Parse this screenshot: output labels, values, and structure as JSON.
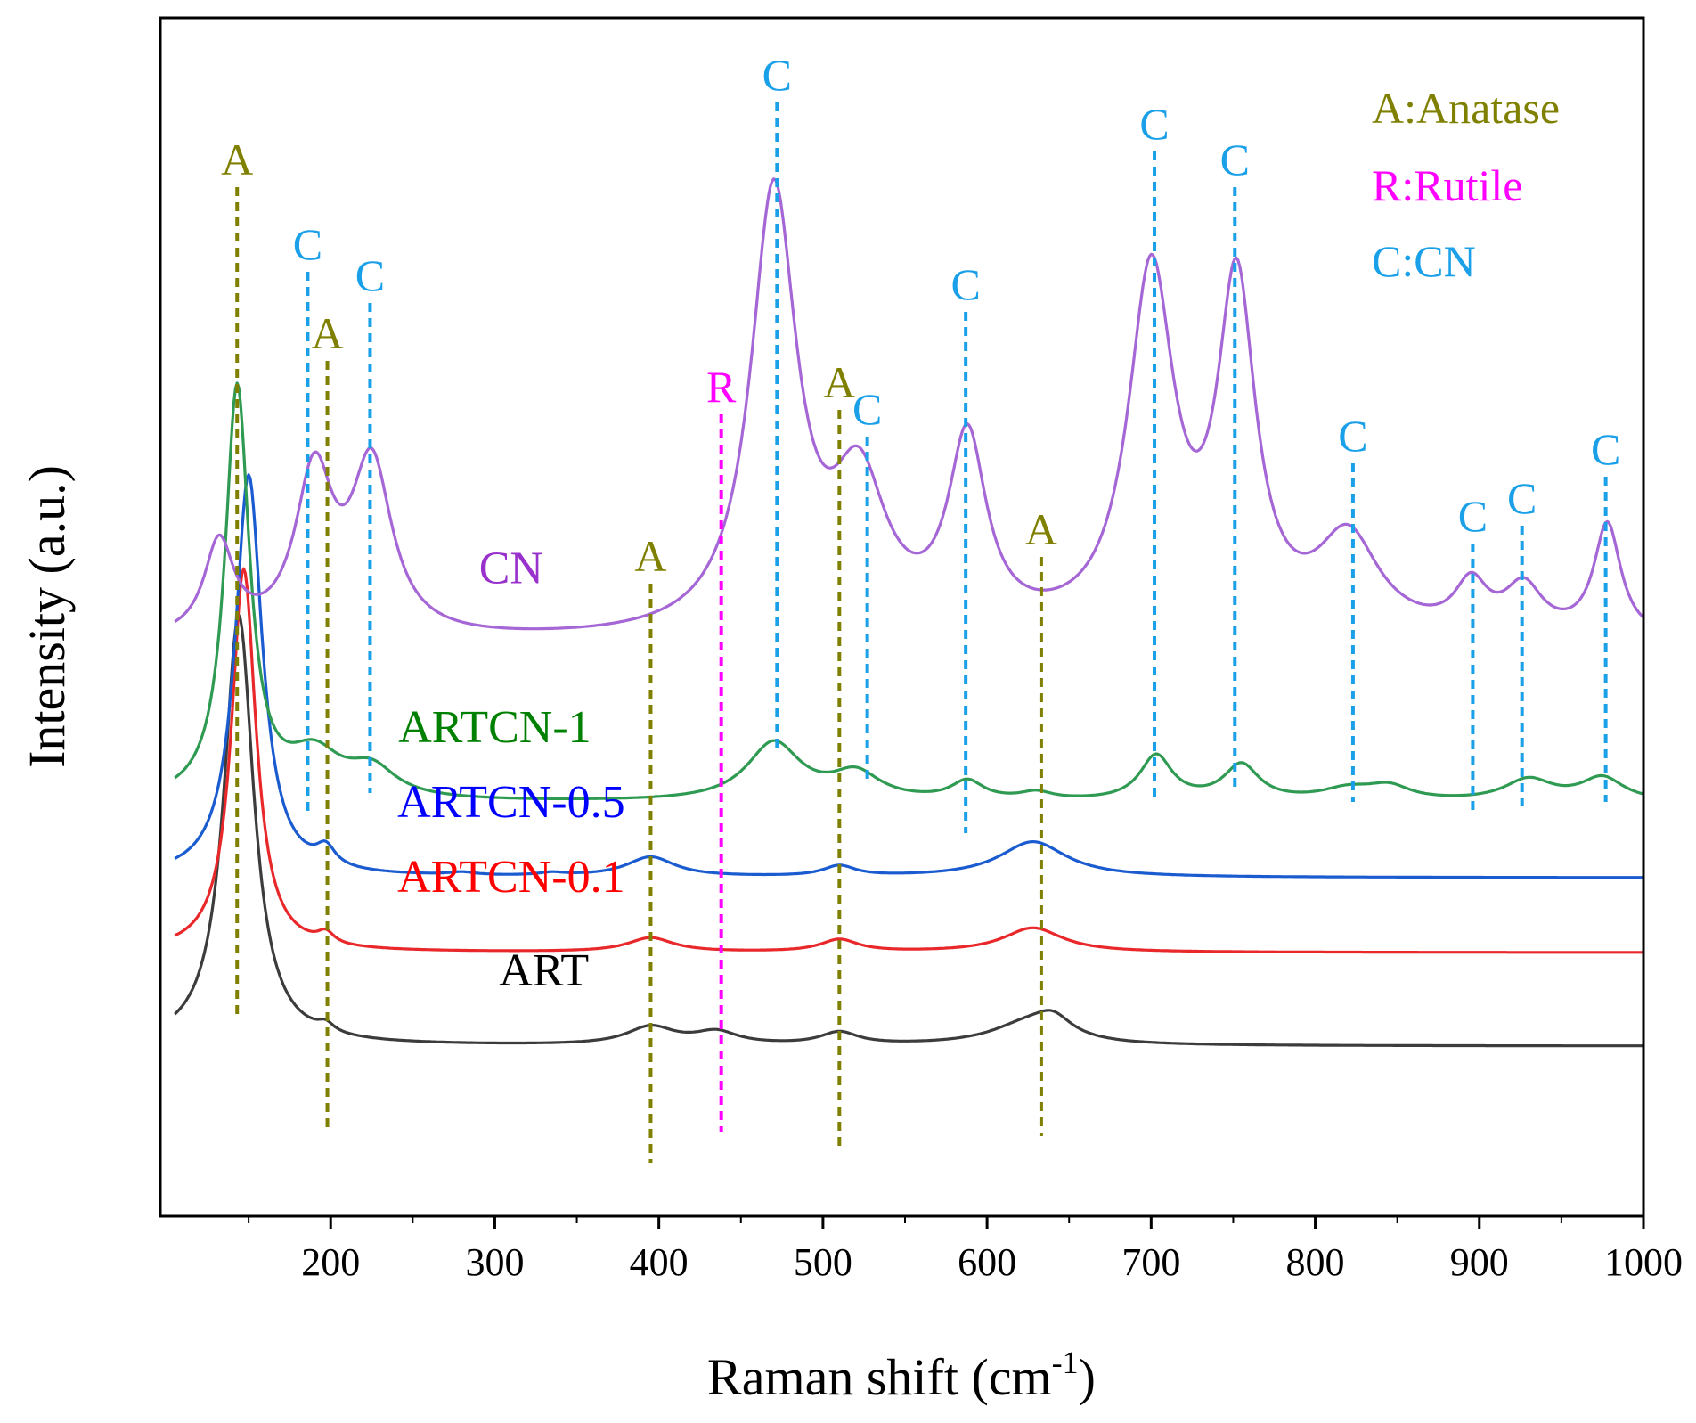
{
  "chart_data": {
    "type": "line",
    "title": "",
    "xlabel_main": "Raman shift (cm",
    "xlabel_sup": "-1",
    "xlabel_close": ")",
    "ylabel": "Intensity (a.u.)",
    "xlim": [
      105,
      1000
    ],
    "xticks": [
      200,
      300,
      400,
      500,
      600,
      700,
      800,
      900,
      1000
    ],
    "yticks_shown": false,
    "series": [
      {
        "name": "ART",
        "label": "ART",
        "color": "#3c3c3c",
        "baseline": 12.0,
        "peaks": [
          [
            144,
            46,
            11
          ],
          [
            197,
            0.9,
            6
          ],
          [
            395,
            1.9,
            18
          ],
          [
            435,
            1.3,
            16
          ],
          [
            510,
            1.3,
            14
          ],
          [
            625,
            2.2,
            28
          ],
          [
            640,
            2.0,
            14
          ]
        ]
      },
      {
        "name": "ARTCN-0.1",
        "label": "ARTCN-0.1",
        "color": "#e8282a",
        "baseline": 22.0,
        "peaks": [
          [
            147,
            41,
            9
          ],
          [
            197,
            1.2,
            6
          ],
          [
            395,
            1.5,
            17
          ],
          [
            510,
            1.3,
            14
          ],
          [
            628,
            2.6,
            22
          ]
        ]
      },
      {
        "name": "ARTCN-0.5",
        "label": "ARTCN-0.5",
        "color": "#1a5cd0",
        "baseline": 30.0,
        "peaks": [
          [
            150,
            43,
            10
          ],
          [
            197,
            2.0,
            7
          ],
          [
            395,
            2.1,
            18
          ],
          [
            510,
            1.1,
            12
          ],
          [
            628,
            3.8,
            25
          ],
          [
            280,
            0.3,
            10
          ],
          [
            335,
            0.3,
            10
          ]
        ]
      },
      {
        "name": "ARTCN-1",
        "label": "ARTCN-1",
        "color": "#2e9a52",
        "baseline": 38.0,
        "peaks": [
          [
            143,
            44,
            9
          ],
          [
            190,
            4.5,
            20
          ],
          [
            225,
            3.0,
            18
          ],
          [
            470,
            6.2,
            20
          ],
          [
            520,
            2.8,
            18
          ],
          [
            588,
            2.0,
            12
          ],
          [
            630,
            0.8,
            12
          ],
          [
            703,
            4.8,
            12
          ],
          [
            755,
            3.8,
            13
          ],
          [
            820,
            1.2,
            20
          ],
          [
            845,
            1.4,
            16
          ],
          [
            930,
            2.3,
            18
          ],
          [
            975,
            2.5,
            16
          ]
        ]
      },
      {
        "name": "CN",
        "label": "CN",
        "color": "#a566d6",
        "baseline": 55.0,
        "peaks": [
          [
            132,
            10,
            11
          ],
          [
            190,
            17,
            14
          ],
          [
            225,
            18,
            15
          ],
          [
            470,
            47,
            17
          ],
          [
            522,
            15,
            20
          ],
          [
            588,
            20,
            14
          ],
          [
            700,
            38,
            17
          ],
          [
            752,
            36,
            14
          ],
          [
            820,
            10,
            23
          ],
          [
            895,
            5,
            12
          ],
          [
            927,
            5,
            14
          ],
          [
            978,
            12,
            10
          ]
        ]
      }
    ],
    "series_labels": [
      {
        "text": "ART",
        "color": "#000000",
        "x": 330
      },
      {
        "text": "ARTCN-0.1",
        "color": "#ff0000",
        "x": 310
      },
      {
        "text": "ARTCN-0.5",
        "color": "#0000ff",
        "x": 310
      },
      {
        "text": "ARTCN-1",
        "color": "#008000",
        "x": 300
      },
      {
        "text": "CN",
        "color": "#9932cc",
        "x": 310
      }
    ],
    "peak_markers": [
      {
        "x": 143,
        "letter": "A",
        "phase": "Anatase",
        "color": "#808000"
      },
      {
        "x": 198,
        "letter": "A",
        "phase": "Anatase",
        "color": "#808000"
      },
      {
        "x": 395,
        "letter": "A",
        "phase": "Anatase",
        "color": "#808000"
      },
      {
        "x": 510,
        "letter": "A",
        "phase": "Anatase",
        "color": "#808000"
      },
      {
        "x": 633,
        "letter": "A",
        "phase": "Anatase",
        "color": "#808000"
      },
      {
        "x": 438,
        "letter": "R",
        "phase": "Rutile",
        "color": "#ff00ff"
      },
      {
        "x": 186,
        "letter": "C",
        "phase": "CN",
        "color": "#1aa0e8"
      },
      {
        "x": 224,
        "letter": "C",
        "phase": "CN",
        "color": "#1aa0e8"
      },
      {
        "x": 472,
        "letter": "C",
        "phase": "CN",
        "color": "#1aa0e8"
      },
      {
        "x": 527,
        "letter": "C",
        "phase": "CN",
        "color": "#1aa0e8"
      },
      {
        "x": 587,
        "letter": "C",
        "phase": "CN",
        "color": "#1aa0e8"
      },
      {
        "x": 702,
        "letter": "C",
        "phase": "CN",
        "color": "#1aa0e8"
      },
      {
        "x": 751,
        "letter": "C",
        "phase": "CN",
        "color": "#1aa0e8"
      },
      {
        "x": 823,
        "letter": "C",
        "phase": "CN",
        "color": "#1aa0e8"
      },
      {
        "x": 896,
        "letter": "C",
        "phase": "CN",
        "color": "#1aa0e8"
      },
      {
        "x": 926,
        "letter": "C",
        "phase": "CN",
        "color": "#1aa0e8"
      },
      {
        "x": 977,
        "letter": "C",
        "phase": "CN",
        "color": "#1aa0e8"
      }
    ],
    "legend": {
      "placement": "top-right",
      "entries": [
        {
          "text": "A:Anatase",
          "color": "#808000"
        },
        {
          "text": "R:Rutile",
          "color": "#ff00ff"
        },
        {
          "text": "C:CN",
          "color": "#1aa0e8"
        }
      ]
    }
  }
}
